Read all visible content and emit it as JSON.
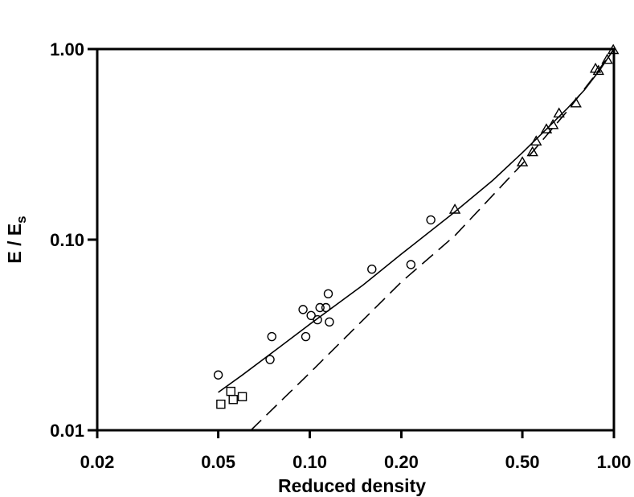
{
  "chart_data": {
    "type": "scatter",
    "title": "",
    "xlabel": "Reduced density",
    "ylabel": {
      "main": "E / E",
      "subscript": "s"
    },
    "xscale": "log",
    "yscale": "log",
    "xlim": [
      0.02,
      1.0
    ],
    "ylim": [
      0.01,
      1.0
    ],
    "grid": false,
    "x_ticks": [
      0.02,
      0.05,
      0.1,
      0.2,
      0.5,
      1.0
    ],
    "x_tick_labels": [
      "0.02",
      "0.05",
      "0.10",
      "0.20",
      "0.50",
      "1.00"
    ],
    "y_ticks": [
      0.01,
      0.1,
      1.0
    ],
    "y_tick_labels": [
      "0.01",
      "0.10",
      "1.00"
    ],
    "series": [
      {
        "marker": "circle",
        "points": [
          [
            0.05,
            0.0195
          ],
          [
            0.074,
            0.0235
          ],
          [
            0.075,
            0.031
          ],
          [
            0.095,
            0.043
          ],
          [
            0.097,
            0.031
          ],
          [
            0.101,
            0.04
          ],
          [
            0.106,
            0.038
          ],
          [
            0.108,
            0.044
          ],
          [
            0.113,
            0.044
          ],
          [
            0.115,
            0.052
          ],
          [
            0.116,
            0.037
          ],
          [
            0.16,
            0.07
          ],
          [
            0.215,
            0.074
          ],
          [
            0.25,
            0.127
          ]
        ]
      },
      {
        "marker": "square",
        "points": [
          [
            0.051,
            0.0137
          ],
          [
            0.055,
            0.016
          ],
          [
            0.056,
            0.0145
          ],
          [
            0.06,
            0.015
          ]
        ]
      },
      {
        "marker": "triangle",
        "points": [
          [
            0.3,
            0.144
          ],
          [
            0.5,
            0.255
          ],
          [
            0.54,
            0.288
          ],
          [
            0.555,
            0.328
          ],
          [
            0.6,
            0.38
          ],
          [
            0.63,
            0.4
          ],
          [
            0.66,
            0.46
          ],
          [
            0.75,
            0.52
          ],
          [
            0.87,
            0.79
          ],
          [
            0.89,
            0.77
          ],
          [
            0.95,
            0.88
          ],
          [
            0.995,
            0.99
          ]
        ]
      }
    ],
    "fit_lines": [
      {
        "style": "solid",
        "points": [
          [
            0.05,
            0.0158
          ],
          [
            0.06,
            0.0195
          ],
          [
            0.08,
            0.0275
          ],
          [
            0.1,
            0.036
          ],
          [
            0.15,
            0.058
          ],
          [
            0.2,
            0.084
          ],
          [
            0.29,
            0.134
          ],
          [
            0.3,
            0.14
          ],
          [
            0.4,
            0.205
          ],
          [
            0.5,
            0.286
          ],
          [
            0.6,
            0.38
          ],
          [
            0.7,
            0.485
          ],
          [
            0.8,
            0.61
          ],
          [
            0.9,
            0.78
          ],
          [
            1.0,
            1.0
          ]
        ]
      },
      {
        "style": "dashed",
        "points": [
          [
            0.064,
            0.01
          ],
          [
            0.1,
            0.02
          ],
          [
            0.2,
            0.06
          ],
          [
            0.3,
            0.105
          ],
          [
            0.5,
            0.25
          ],
          [
            0.7,
            0.47
          ],
          [
            0.85,
            0.7
          ],
          [
            1.0,
            1.0
          ]
        ]
      }
    ]
  }
}
